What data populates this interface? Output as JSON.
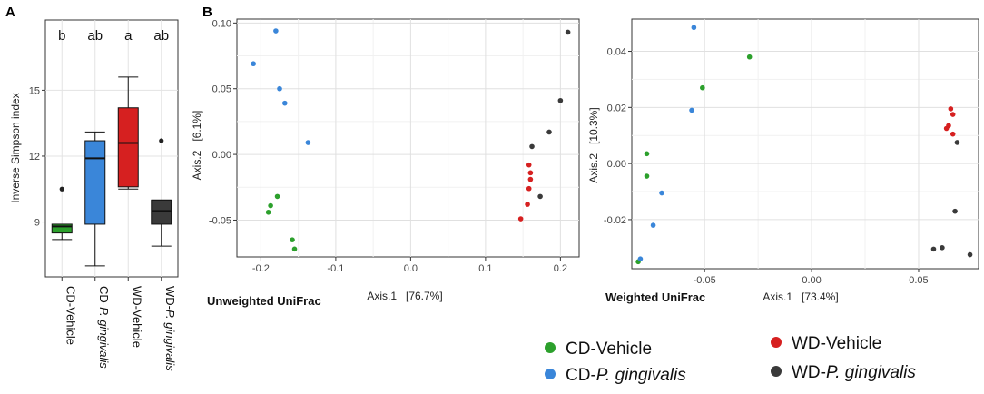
{
  "panel_labels": {
    "a": "A",
    "b": "B"
  },
  "legend": [
    {
      "prefix": "CD-",
      "name": "Vehicle",
      "italic": false,
      "color": "#2ca02c"
    },
    {
      "prefix": "CD-",
      "name": "P. gingivalis",
      "italic": true,
      "color": "#3a86d9"
    },
    {
      "prefix": "WD-",
      "name": "Vehicle",
      "italic": false,
      "color": "#d62020"
    },
    {
      "prefix": "WD-",
      "name": "P. gingivalis",
      "italic": true,
      "color": "#3a3a3a"
    }
  ],
  "chart_data": [
    {
      "type": "box",
      "panel": "A",
      "ylabel": "Inverse Simpson index",
      "ylim": [
        6.5,
        18.2
      ],
      "yticks": [
        9,
        12,
        15
      ],
      "categories": [
        {
          "prefix": "CD-",
          "name": "Vehicle",
          "italic": false
        },
        {
          "prefix": "CD-",
          "name": "P. gingivalis",
          "italic": true
        },
        {
          "prefix": "WD-",
          "name": "Vehicle",
          "italic": false
        },
        {
          "prefix": "WD-",
          "name": "P. gingivalis",
          "italic": true
        }
      ],
      "significance": [
        "b",
        "ab",
        "a",
        "ab"
      ],
      "boxes": [
        {
          "min": 8.2,
          "q1": 8.5,
          "median": 8.8,
          "q3": 8.9,
          "max": 8.9,
          "outliers": [
            10.5
          ],
          "color": "#2ca02c"
        },
        {
          "min": 7.0,
          "q1": 8.9,
          "median": 11.9,
          "q3": 12.7,
          "max": 13.1,
          "outliers": [],
          "color": "#3a86d9"
        },
        {
          "min": 10.5,
          "q1": 10.6,
          "median": 12.6,
          "q3": 14.2,
          "max": 15.6,
          "outliers": [],
          "color": "#d62020"
        },
        {
          "min": 7.9,
          "q1": 8.9,
          "median": 9.5,
          "q3": 10.0,
          "max": 10.0,
          "outliers": [
            12.7
          ],
          "color": "#3a3a3a"
        }
      ]
    },
    {
      "type": "scatter",
      "panel": "B",
      "metric": "Unweighted UniFrac",
      "xlabel": "Axis.1   [76.7%]",
      "ylabel": "Axis.2   [6.1%]",
      "xlim": [
        -0.232,
        0.225
      ],
      "ylim": [
        -0.078,
        0.103
      ],
      "xticks": [
        -0.2,
        -0.1,
        0.0,
        0.1,
        0.2
      ],
      "xtick_labels": [
        "-0.2",
        "-0.1",
        "0.0",
        "0.1",
        "0.2"
      ],
      "yticks": [
        -0.05,
        0.0,
        0.05,
        0.1
      ],
      "ytick_labels": [
        "-0.05",
        "0.00",
        "0.05",
        "0.10"
      ],
      "series": [
        {
          "name": "CD-Vehicle",
          "color": "#2ca02c",
          "points": [
            [
              -0.178,
              -0.032
            ],
            [
              -0.187,
              -0.039
            ],
            [
              -0.19,
              -0.044
            ],
            [
              -0.158,
              -0.065
            ],
            [
              -0.155,
              -0.072
            ]
          ]
        },
        {
          "name": "CD-P. gingivalis",
          "color": "#3a86d9",
          "points": [
            [
              -0.18,
              0.094
            ],
            [
              -0.21,
              0.069
            ],
            [
              -0.175,
              0.05
            ],
            [
              -0.168,
              0.039
            ],
            [
              -0.137,
              0.009
            ]
          ]
        },
        {
          "name": "WD-Vehicle",
          "color": "#d62020",
          "points": [
            [
              0.158,
              -0.008
            ],
            [
              0.16,
              -0.014
            ],
            [
              0.16,
              -0.019
            ],
            [
              0.158,
              -0.026
            ],
            [
              0.156,
              -0.038
            ],
            [
              0.147,
              -0.049
            ]
          ]
        },
        {
          "name": "WD-P. gingivalis",
          "color": "#3a3a3a",
          "points": [
            [
              0.21,
              0.093
            ],
            [
              0.2,
              0.041
            ],
            [
              0.185,
              0.017
            ],
            [
              0.162,
              0.006
            ],
            [
              0.173,
              -0.032
            ]
          ]
        }
      ]
    },
    {
      "type": "scatter",
      "panel": "B",
      "metric": "Weighted UniFrac",
      "xlabel": "Axis.1   [73.4%]",
      "ylabel": "Axis.2   [10.3%]",
      "xlim": [
        -0.084,
        0.078
      ],
      "ylim": [
        -0.0375,
        0.0515
      ],
      "xticks": [
        -0.05,
        0.0,
        0.05
      ],
      "xtick_labels": [
        "-0.05",
        "0.00",
        "0.05"
      ],
      "yticks": [
        -0.02,
        0.0,
        0.02,
        0.04
      ],
      "ytick_labels": [
        "-0.02",
        "0.00",
        "0.02",
        "0.04"
      ],
      "series": [
        {
          "name": "CD-Vehicle",
          "color": "#2ca02c",
          "points": [
            [
              -0.029,
              0.038
            ],
            [
              -0.051,
              0.027
            ],
            [
              -0.077,
              0.0035
            ],
            [
              -0.077,
              -0.0045
            ],
            [
              -0.081,
              -0.035
            ]
          ]
        },
        {
          "name": "CD-P. gingivalis",
          "color": "#3a86d9",
          "points": [
            [
              -0.055,
              0.0485
            ],
            [
              -0.056,
              0.019
            ],
            [
              -0.07,
              -0.0105
            ],
            [
              -0.074,
              -0.022
            ],
            [
              -0.08,
              -0.034
            ]
          ]
        },
        {
          "name": "WD-Vehicle",
          "color": "#d62020",
          "points": [
            [
              0.065,
              0.0195
            ],
            [
              0.066,
              0.0175
            ],
            [
              0.064,
              0.0135
            ],
            [
              0.063,
              0.0125
            ],
            [
              0.066,
              0.0105
            ]
          ]
        },
        {
          "name": "WD-P. gingivalis",
          "color": "#3a3a3a",
          "points": [
            [
              0.068,
              0.0075
            ],
            [
              0.067,
              -0.017
            ],
            [
              0.061,
              -0.03
            ],
            [
              0.057,
              -0.0305
            ],
            [
              0.074,
              -0.0325
            ]
          ]
        }
      ]
    }
  ]
}
